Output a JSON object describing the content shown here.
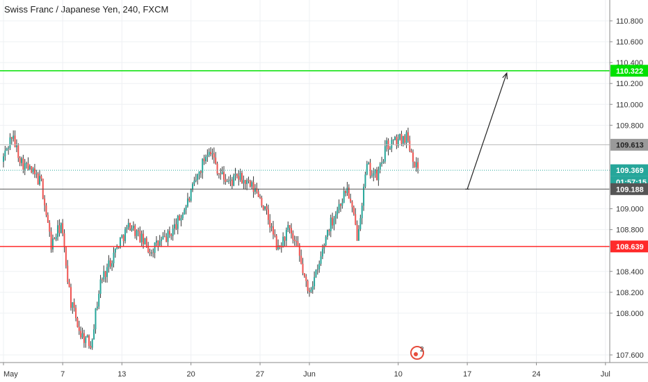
{
  "chart_data": {
    "type": "candlestick",
    "title": "Swiss Franc / Japanese Yen, 240, FXCM",
    "xlabel": "",
    "ylabel": "",
    "ylim": [
      107.55,
      111.0
    ],
    "y_ticks": [
      "110.800",
      "110.600",
      "110.400",
      "110.200",
      "110.000",
      "109.800",
      "109.000",
      "108.800",
      "108.400",
      "108.200",
      "108.000",
      "107.600"
    ],
    "x_ticks": [
      "May",
      "7",
      "13",
      "20",
      "27",
      "Jun",
      "10",
      "17",
      "24",
      "Jul"
    ],
    "grid": true,
    "colors": {
      "up": "#26a69a",
      "down": "#ef5350",
      "resistance": "#00e100",
      "support": "#ff2a2a",
      "level_gray": "#9a9a9a"
    },
    "price_path": [
      {
        "date": "May 1",
        "price": 109.45
      },
      {
        "date": "May 2",
        "price": 109.7
      },
      {
        "date": "May 3",
        "price": 109.45
      },
      {
        "date": "May 5",
        "price": 109.25
      },
      {
        "date": "May 6",
        "price": 108.65
      },
      {
        "date": "May 7",
        "price": 108.85
      },
      {
        "date": "May 8",
        "price": 108.1
      },
      {
        "date": "May 9",
        "price": 107.8
      },
      {
        "date": "May 10",
        "price": 107.7
      },
      {
        "date": "May 11",
        "price": 108.3
      },
      {
        "date": "May 13",
        "price": 108.7
      },
      {
        "date": "May 14",
        "price": 108.85
      },
      {
        "date": "May 16",
        "price": 108.6
      },
      {
        "date": "May 18",
        "price": 108.75
      },
      {
        "date": "May 19",
        "price": 108.9
      },
      {
        "date": "May 20",
        "price": 109.1
      },
      {
        "date": "May 22",
        "price": 109.6
      },
      {
        "date": "May 23",
        "price": 109.35
      },
      {
        "date": "May 24",
        "price": 109.25
      },
      {
        "date": "May 25",
        "price": 109.3
      },
      {
        "date": "May 27",
        "price": 109.15
      },
      {
        "date": "May 28",
        "price": 108.9
      },
      {
        "date": "May 29",
        "price": 108.6
      },
      {
        "date": "May 30",
        "price": 108.8
      },
      {
        "date": "May 31",
        "price": 108.6
      },
      {
        "date": "Jun 1",
        "price": 108.2
      },
      {
        "date": "Jun 2",
        "price": 108.4
      },
      {
        "date": "Jun 3",
        "price": 108.8
      },
      {
        "date": "Jun 4",
        "price": 109.0
      },
      {
        "date": "Jun 5",
        "price": 109.2
      },
      {
        "date": "Jun 6",
        "price": 108.75
      },
      {
        "date": "Jun 7",
        "price": 109.4
      },
      {
        "date": "Jun 8",
        "price": 109.3
      },
      {
        "date": "Jun 9",
        "price": 109.6
      },
      {
        "date": "Jun 10",
        "price": 109.65
      },
      {
        "date": "Jun 11",
        "price": 109.7
      },
      {
        "date": "Jun 12",
        "price": 109.4
      }
    ],
    "horizontal_levels": [
      {
        "name": "resistance",
        "value": 110.322,
        "label": "110.322",
        "color": "#00e100"
      },
      {
        "name": "level",
        "value": 109.613,
        "label": "109.613",
        "color": "#9a9a9a"
      },
      {
        "name": "current",
        "value": 109.369,
        "label": "109.369",
        "color": "#26a69a",
        "countdown": "01:57:15"
      },
      {
        "name": "level",
        "value": 109.188,
        "label": "109.188",
        "color": "#555555"
      },
      {
        "name": "support",
        "value": 108.639,
        "label": "108.639",
        "color": "#ff2a2a"
      }
    ],
    "annotations": [
      {
        "type": "arrow",
        "from": {
          "date": "Jun 17",
          "price": 109.188
        },
        "to": {
          "date": "Jun 21",
          "price": 110.3
        }
      }
    ],
    "watermark_badge": "2"
  }
}
